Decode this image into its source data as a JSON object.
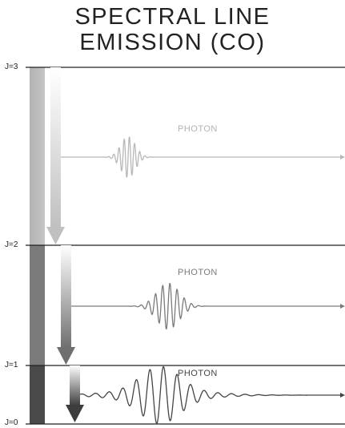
{
  "title": {
    "line1": "SPECTRAL LINE",
    "line2": "EMISSION (CO)"
  },
  "energy_levels": [
    {
      "label": "J=3"
    },
    {
      "label": "J=2"
    },
    {
      "label": "J=1"
    },
    {
      "label": "J=0"
    }
  ],
  "photons": [
    {
      "label": "PHOTON",
      "color": "#b3b3b3"
    },
    {
      "label": "PHOTON",
      "color": "#7a7a7a"
    },
    {
      "label": "PHOTON",
      "color": "#444444"
    }
  ],
  "colors": {
    "level_line": "#222222",
    "column_top": "#bdbdbd",
    "column_mid": "#777777",
    "column_low": "#444444",
    "arrow_1": "#c8c8c8",
    "arrow_2": "#7a7a7a",
    "arrow_3": "#444444"
  }
}
